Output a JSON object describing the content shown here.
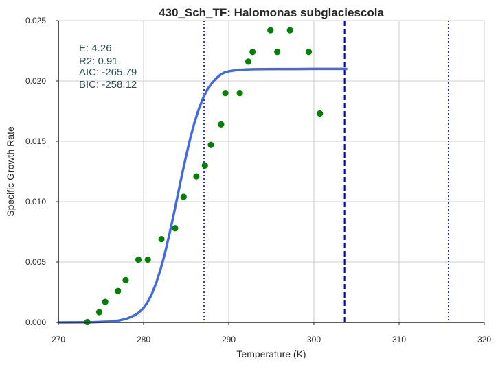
{
  "chart_data": {
    "type": "scatter",
    "title": "430_Sch_TF: Halomonas subglaciescola",
    "xlabel": "Temperature (K)",
    "ylabel": "Specific Growth Rate",
    "xlim": [
      270,
      320
    ],
    "ylim": [
      0,
      0.025
    ],
    "xticks": [
      "270",
      "280",
      "290",
      "300",
      "310",
      "320"
    ],
    "yticks": [
      "0.000",
      "0.005",
      "0.010",
      "0.015",
      "0.020",
      "0.025"
    ],
    "grid": true,
    "colors": {
      "points": "#008000",
      "fit": "#4169e1",
      "vlines": "#0000cd",
      "stats_text": "#2f4f4f",
      "grid": "#cccccc"
    },
    "stats": {
      "e": "E:  4.26",
      "r2": "R2:  0.91",
      "aic": "AIC: -265.79",
      "bic": "BIC: -258.12"
    },
    "points": {
      "x": [
        273.4,
        274.8,
        275.5,
        277.0,
        277.9,
        279.4,
        280.5,
        282.1,
        283.7,
        284.7,
        286.2,
        287.2,
        287.9,
        289.1,
        289.6,
        291.3,
        292.3,
        292.8,
        294.9,
        295.7,
        297.2,
        299.4,
        300.7
      ],
      "y": [
        3e-05,
        0.00085,
        0.0017,
        0.0026,
        0.0035,
        0.0052,
        0.0052,
        0.0069,
        0.0078,
        0.0104,
        0.0121,
        0.013,
        0.0147,
        0.0164,
        0.019,
        0.019,
        0.0216,
        0.0224,
        0.0242,
        0.0224,
        0.0242,
        0.0224,
        0.0173
      ]
    },
    "fit_curve": {
      "x": [
        270.0,
        272.0,
        274.0,
        276.0,
        277.0,
        278.0,
        279.0,
        279.5,
        280.0,
        280.5,
        281.0,
        281.5,
        282.0,
        282.5,
        283.0,
        283.5,
        284.0,
        284.5,
        285.0,
        285.5,
        286.0,
        286.5,
        287.0,
        287.5,
        288.0,
        288.5,
        289.0,
        289.5,
        290.0,
        291.0,
        292.0,
        293.0,
        294.0,
        296.0,
        298.0,
        300.0,
        302.0,
        303.8
      ],
      "y": [
        0.0,
        3e-06,
        1.5e-05,
        7e-05,
        0.00015,
        0.0003,
        0.0006,
        0.00085,
        0.0012,
        0.0017,
        0.0024,
        0.0033,
        0.0044,
        0.0057,
        0.0072,
        0.0088,
        0.0105,
        0.0122,
        0.0138,
        0.0153,
        0.0166,
        0.0177,
        0.0186,
        0.0193,
        0.0198,
        0.0202,
        0.0205,
        0.0207,
        0.0208,
        0.0209,
        0.02095,
        0.02097,
        0.02098,
        0.02099,
        0.02099,
        0.021,
        0.021,
        0.021
      ]
    },
    "vertical_lines": [
      {
        "x": 287.1,
        "style": "dotted"
      },
      {
        "x": 303.6,
        "style": "dashed"
      },
      {
        "x": 315.8,
        "style": "dotted"
      }
    ]
  }
}
